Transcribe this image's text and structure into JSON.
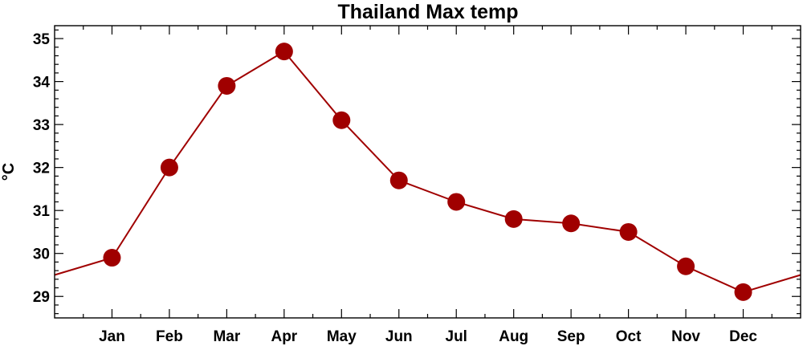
{
  "chart_data": {
    "type": "line",
    "title": "Thailand Max temp",
    "ylabel": "°C",
    "xlabel": "",
    "categories": [
      "Jan",
      "Feb",
      "Mar",
      "Apr",
      "May",
      "Jun",
      "Jul",
      "Aug",
      "Sep",
      "Oct",
      "Nov",
      "Dec"
    ],
    "series": [
      {
        "values": [
          29.9,
          32.0,
          33.9,
          34.7,
          33.1,
          31.7,
          31.2,
          30.8,
          30.7,
          30.5,
          29.7,
          29.1
        ]
      }
    ],
    "ylim": [
      28.5,
      35.3
    ],
    "yticks": [
      29,
      30,
      31,
      32,
      33,
      34,
      35
    ],
    "ytick_labels": [
      "29",
      "30",
      "31",
      "32",
      "33",
      "34",
      "35"
    ],
    "grid": false,
    "legend": false,
    "colors": {
      "line": "#a00000",
      "marker": "#a00000",
      "axis": "#000000"
    }
  }
}
